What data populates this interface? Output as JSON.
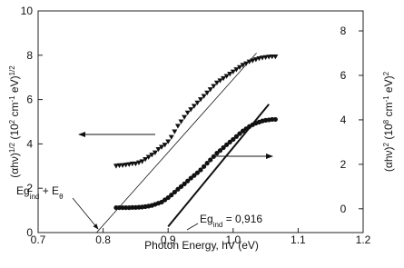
{
  "chart_data": {
    "type": "scatter",
    "xlabel": "Photon Energy, hV (eV)",
    "ylabel": [
      {
        "text": "(αhν)"
      },
      {
        "text": "1/2",
        "sup": true
      },
      {
        "text": " (10"
      },
      {
        "text": "2",
        "sup": true
      },
      {
        "text": " cm"
      },
      {
        "text": "-1",
        "sup": true
      },
      {
        "text": " eV)"
      },
      {
        "text": "1/2",
        "sup": true
      }
    ],
    "y2label": [
      {
        "text": "(αhν)"
      },
      {
        "text": "2",
        "sup": true
      },
      {
        "text": " (10"
      },
      {
        "text": "8",
        "sup": true
      },
      {
        "text": " cm"
      },
      {
        "text": "-1",
        "sup": true
      },
      {
        "text": " eV)"
      },
      {
        "text": "2",
        "sup": true
      }
    ],
    "xlim": [
      0.7,
      1.2
    ],
    "xticks": [
      0.7,
      0.8,
      0.9,
      {
        "value": 1,
        "label": "1.0"
      },
      1.1,
      1.2
    ],
    "ylim": [
      0,
      10
    ],
    "yticks": [
      0,
      2,
      4,
      6,
      8,
      10
    ],
    "y2lim": [
      -1.07,
      8.9
    ],
    "y2ticks": [
      0,
      2,
      4,
      6,
      8
    ],
    "series": [
      {
        "marker": "triangle-down",
        "color": "#111111",
        "axis": "y",
        "x": [
          0.82,
          0.825,
          0.83,
          0.835,
          0.84,
          0.845,
          0.85,
          0.855,
          0.86,
          0.865,
          0.87,
          0.875,
          0.88,
          0.885,
          0.89,
          0.895,
          0.9,
          0.905,
          0.91,
          0.915,
          0.92,
          0.925,
          0.93,
          0.935,
          0.94,
          0.945,
          0.95,
          0.955,
          0.96,
          0.965,
          0.97,
          0.975,
          0.98,
          0.985,
          0.99,
          0.995,
          1.0,
          1.005,
          1.01,
          1.015,
          1.02,
          1.025,
          1.03,
          1.035,
          1.04,
          1.045,
          1.05,
          1.055,
          1.06,
          1.065
        ],
        "values": [
          3.0,
          3.02,
          3.03,
          3.05,
          3.07,
          3.1,
          3.1,
          3.15,
          3.2,
          3.3,
          3.4,
          3.5,
          3.6,
          3.75,
          3.85,
          3.95,
          4.1,
          4.3,
          4.55,
          4.8,
          5.0,
          5.2,
          5.4,
          5.55,
          5.7,
          5.85,
          6.0,
          6.15,
          6.3,
          6.45,
          6.6,
          6.75,
          6.85,
          6.95,
          7.05,
          7.15,
          7.25,
          7.35,
          7.45,
          7.55,
          7.62,
          7.7,
          7.75,
          7.8,
          7.85,
          7.88,
          7.9,
          7.92,
          7.93,
          7.93
        ]
      },
      {
        "marker": "circle",
        "color": "#111111",
        "axis": "y2",
        "x": [
          0.82,
          0.825,
          0.83,
          0.835,
          0.84,
          0.845,
          0.85,
          0.855,
          0.86,
          0.865,
          0.87,
          0.875,
          0.88,
          0.885,
          0.89,
          0.895,
          0.9,
          0.905,
          0.91,
          0.915,
          0.92,
          0.925,
          0.93,
          0.935,
          0.94,
          0.945,
          0.95,
          0.955,
          0.96,
          0.965,
          0.97,
          0.975,
          0.98,
          0.985,
          0.99,
          0.995,
          1.0,
          1.005,
          1.01,
          1.015,
          1.02,
          1.025,
          1.03,
          1.035,
          1.04,
          1.045,
          1.05,
          1.055,
          1.06,
          1.065
        ],
        "values": [
          0.05,
          0.05,
          0.05,
          0.05,
          0.05,
          0.06,
          0.06,
          0.07,
          0.08,
          0.1,
          0.12,
          0.15,
          0.2,
          0.25,
          0.3,
          0.4,
          0.5,
          0.62,
          0.75,
          0.88,
          1.0,
          1.12,
          1.25,
          1.38,
          1.5,
          1.62,
          1.75,
          1.9,
          2.05,
          2.2,
          2.35,
          2.5,
          2.62,
          2.75,
          2.88,
          3.0,
          3.12,
          3.25,
          3.38,
          3.5,
          3.6,
          3.7,
          3.78,
          3.85,
          3.9,
          3.95,
          3.98,
          4.0,
          4.02,
          4.02
        ]
      }
    ],
    "fits": [
      {
        "axis": "y",
        "linewidth": 0.8,
        "x": [
          0.79,
          1.036
        ],
        "values": [
          0,
          8.1
        ]
      },
      {
        "axis": "y2",
        "linewidth": 2,
        "x": [
          0.9,
          1.055
        ],
        "values": [
          -0.8,
          4.7
        ]
      }
    ],
    "annotations": [
      {
        "parts": [
          {
            "text": "Eg"
          },
          {
            "text": "ind",
            "sub": true
          },
          {
            "text": " + E"
          },
          {
            "text": "θ",
            "sub": true
          }
        ]
      },
      {
        "parts": [
          {
            "text": "Eg"
          },
          {
            "text": "ind",
            "sub": true
          },
          {
            "text": " = 0,916"
          }
        ]
      }
    ]
  }
}
